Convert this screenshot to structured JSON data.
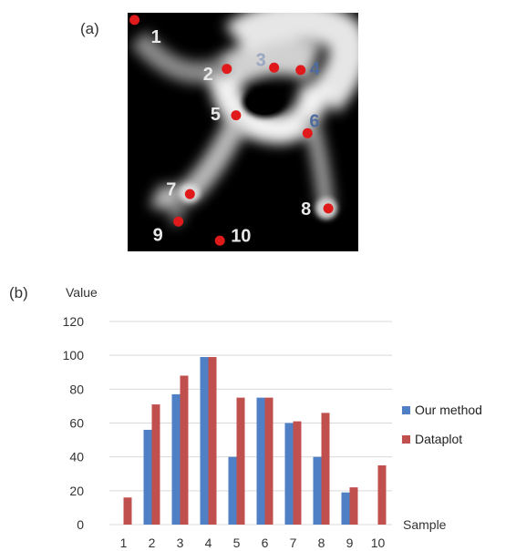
{
  "panels": {
    "a": "(a)",
    "b": "(b)"
  },
  "image": {
    "points": [
      {
        "label": "1",
        "x": 0.03,
        "y": 0.03,
        "label_color": "#e8e8e8",
        "label_dx": 18,
        "label_dy": 20
      },
      {
        "label": "2",
        "x": 0.43,
        "y": 0.235,
        "label_color": "#e8e8e8",
        "label_dx": -26,
        "label_dy": 7
      },
      {
        "label": "3",
        "x": 0.635,
        "y": 0.23,
        "label_color": "#9aa8c4",
        "label_dx": -20,
        "label_dy": -7
      },
      {
        "label": "4",
        "x": 0.75,
        "y": 0.24,
        "label_color": "#4f6c9e",
        "label_dx": 10,
        "label_dy": 0
      },
      {
        "label": "5",
        "x": 0.47,
        "y": 0.43,
        "label_color": "#e8e8e8",
        "label_dx": -28,
        "label_dy": 0
      },
      {
        "label": "6",
        "x": 0.78,
        "y": 0.505,
        "label_color": "#4f6c9e",
        "label_dx": 2,
        "label_dy": -12
      },
      {
        "label": "7",
        "x": 0.27,
        "y": 0.76,
        "label_color": "#e8e8e8",
        "label_dx": -26,
        "label_dy": -4
      },
      {
        "label": "8",
        "x": 0.87,
        "y": 0.82,
        "label_color": "#e8e8e8",
        "label_dx": -30,
        "label_dy": 2
      },
      {
        "label": "9",
        "x": 0.22,
        "y": 0.875,
        "label_color": "#e8e8e8",
        "label_dx": -28,
        "label_dy": 16
      },
      {
        "label": "10",
        "x": 0.4,
        "y": 0.955,
        "label_color": "#e8e8e8",
        "label_dx": 12,
        "label_dy": -4
      }
    ],
    "point_color": "#e01a1a"
  },
  "chart_data": {
    "type": "bar",
    "title": "",
    "ylabel": "Value",
    "xlabel": "Sample",
    "categories": [
      "1",
      "2",
      "3",
      "4",
      "5",
      "6",
      "7",
      "8",
      "9",
      "10"
    ],
    "series": [
      {
        "name": "Our method",
        "color": "#4f7fc4",
        "values": [
          0,
          56,
          77,
          99,
          40,
          75,
          60,
          40,
          19,
          0
        ]
      },
      {
        "name": "Dataplot",
        "color": "#c0504d",
        "values": [
          16,
          71,
          88,
          99,
          75,
          75,
          61,
          66,
          22,
          35
        ]
      }
    ],
    "ylim": [
      0,
      120
    ],
    "yticks": [
      "0",
      "20",
      "40",
      "60",
      "80",
      "100",
      "120"
    ],
    "grid": true,
    "legend": "right"
  }
}
